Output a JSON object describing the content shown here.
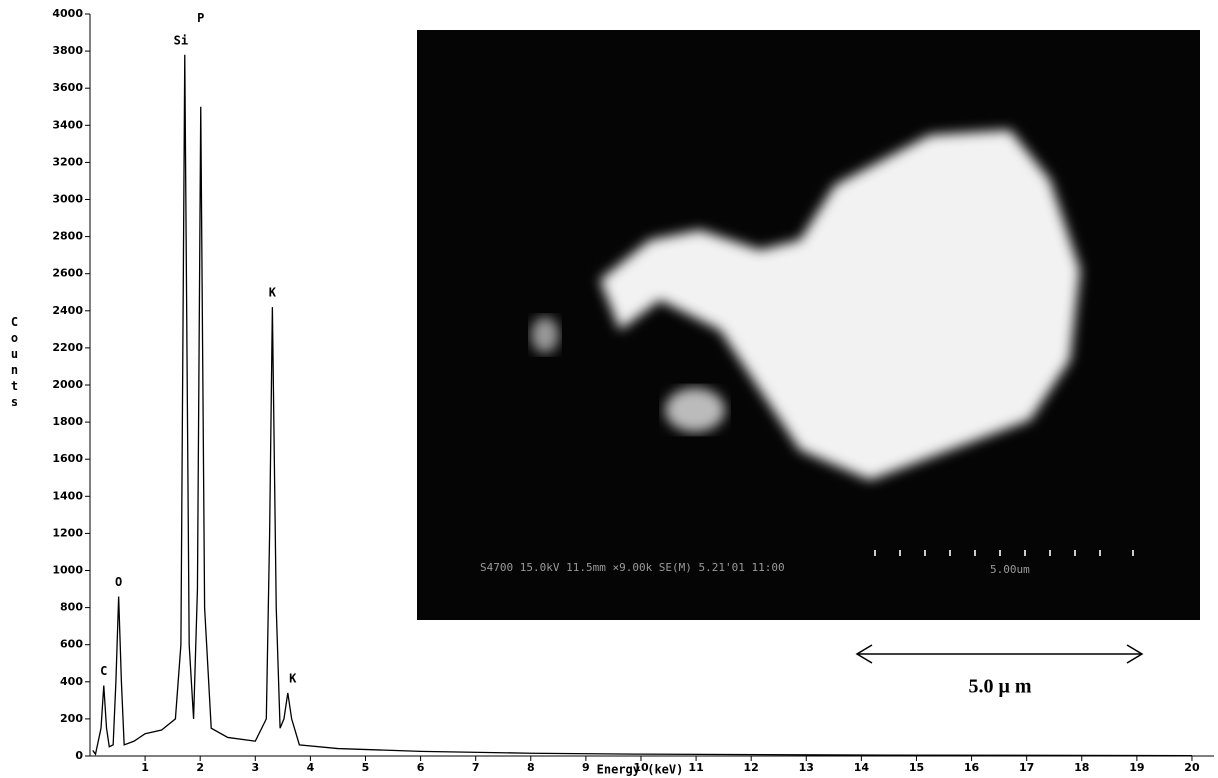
{
  "chart_data": {
    "type": "line",
    "x_label": "Energy (keV)",
    "y_label": "Counts",
    "x": [
      0.05,
      0.1,
      0.2,
      0.25,
      0.3,
      0.35,
      0.42,
      0.47,
      0.52,
      0.57,
      0.62,
      0.8,
      1.0,
      1.3,
      1.55,
      1.65,
      1.72,
      1.8,
      1.88,
      1.95,
      2.01,
      2.08,
      2.2,
      2.5,
      3.0,
      3.2,
      3.26,
      3.31,
      3.38,
      3.45,
      3.52,
      3.59,
      3.66,
      3.8,
      4.5,
      6,
      8,
      10,
      14,
      20
    ],
    "values": [
      30,
      10,
      150,
      380,
      150,
      50,
      60,
      400,
      860,
      400,
      60,
      80,
      120,
      140,
      200,
      600,
      3780,
      600,
      200,
      900,
      3500,
      800,
      150,
      100,
      80,
      200,
      1200,
      2420,
      800,
      150,
      200,
      340,
      200,
      60,
      40,
      25,
      15,
      10,
      5,
      2
    ],
    "color": "#000000",
    "xlim": [
      0,
      20.4
    ],
    "ylim": [
      0,
      4000
    ],
    "xticks": [
      1,
      2,
      3,
      4,
      5,
      6,
      7,
      8,
      9,
      10,
      11,
      12,
      13,
      14,
      15,
      16,
      17,
      18,
      19,
      20
    ],
    "yticks": [
      0,
      200,
      400,
      600,
      800,
      1000,
      1200,
      1400,
      1600,
      1800,
      2000,
      2200,
      2400,
      2600,
      2800,
      3000,
      3200,
      3400,
      3600,
      3800,
      4000
    ],
    "annotations": [
      {
        "text": "C",
        "x": 0.25,
        "y": 380
      },
      {
        "text": "O",
        "x": 0.52,
        "y": 860
      },
      {
        "text": "Si",
        "x": 1.65,
        "y": 3780
      },
      {
        "text": "P",
        "x": 2.01,
        "y": 3900
      },
      {
        "text": "K",
        "x": 3.31,
        "y": 2420
      },
      {
        "text": "K",
        "x": 3.68,
        "y": 340
      }
    ]
  },
  "inset": {
    "caption": "S4700 15.0kV 11.5mm ×9.00k SE(M) 5.21'01 11:00",
    "scale_caption": "5.00um",
    "scale_label": "5.0 μ m"
  }
}
